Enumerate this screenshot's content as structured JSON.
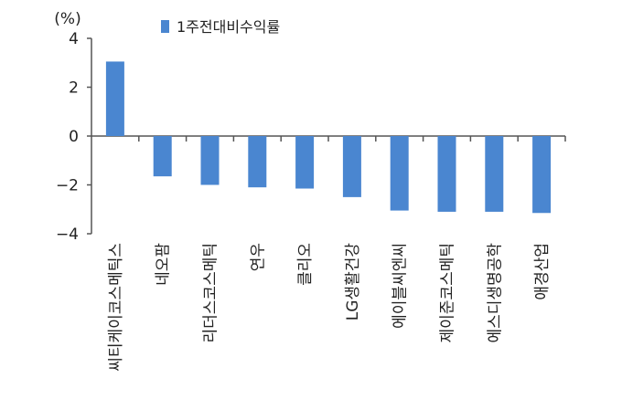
{
  "chart_data": {
    "type": "bar",
    "y_unit": "(%)",
    "legend": {
      "label": "1주전대비수익률",
      "placement": "top"
    },
    "categories": [
      "씨티케이코스메틱스",
      "네오팜",
      "리더스코스메틱",
      "연우",
      "클리오",
      "LG생활건강",
      "에이블씨엔씨",
      "제이준코스메틱",
      "에스디생명공학",
      "애경산업"
    ],
    "series": [
      {
        "name": "1주전대비수익률",
        "values": [
          3.05,
          -1.65,
          -2.0,
          -2.1,
          -2.15,
          -2.5,
          -3.05,
          -3.1,
          -3.1,
          -3.15
        ]
      }
    ],
    "ylim": [
      -4,
      4
    ],
    "yticks": [
      4,
      2,
      0,
      -2,
      -4
    ],
    "ytick_labels": [
      "4",
      "2",
      "0",
      "−2",
      "−4"
    ],
    "grid": false,
    "colors": {
      "bar": "#4a86d0",
      "axis": "#555555"
    }
  }
}
